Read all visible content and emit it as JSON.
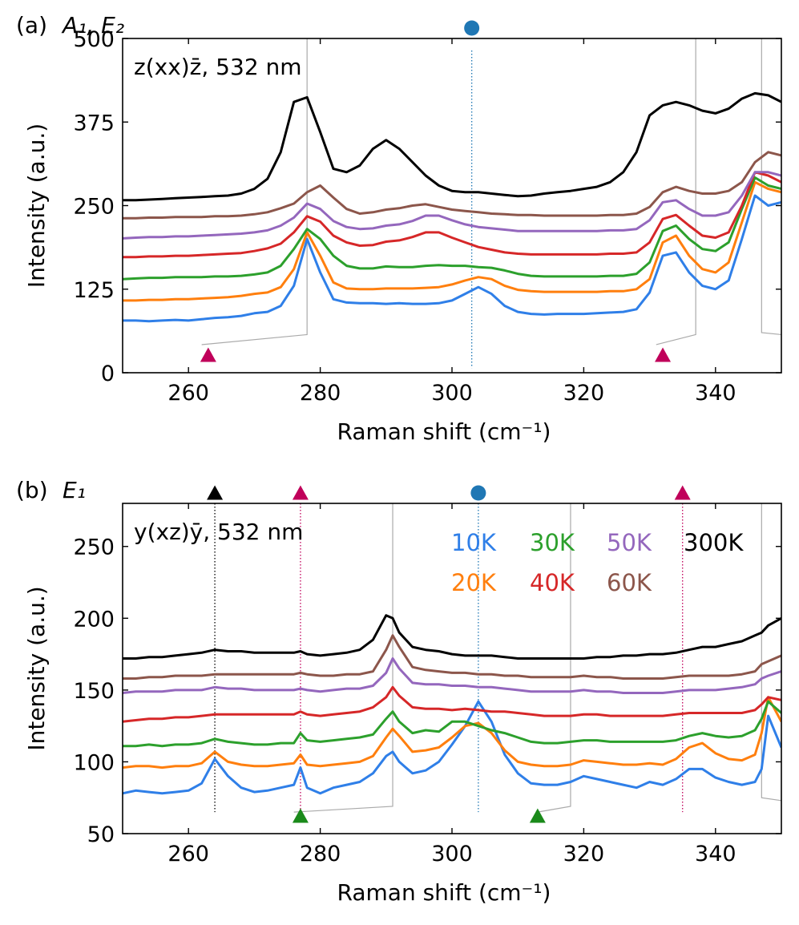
{
  "chart_data": [
    {
      "type": "line",
      "panel_label": "(a)",
      "title_symbols": "A₁, E₂",
      "annotation": "z(xx)z̄, 532 nm",
      "xlabel": "Raman shift (cm⁻¹)",
      "ylabel": "Intensity (a.u.)",
      "xlim": [
        250,
        350
      ],
      "ylim": [
        0,
        500
      ],
      "xticks": [
        260,
        280,
        300,
        320,
        340
      ],
      "yticks": [
        0,
        125,
        250,
        375,
        500
      ],
      "x": [
        250,
        252,
        254,
        256,
        258,
        260,
        262,
        264,
        266,
        268,
        270,
        272,
        274,
        276,
        278,
        280,
        282,
        284,
        286,
        288,
        290,
        292,
        294,
        296,
        298,
        300,
        302,
        304,
        306,
        308,
        310,
        312,
        314,
        316,
        318,
        320,
        322,
        324,
        326,
        328,
        330,
        332,
        334,
        336,
        338,
        340,
        342,
        344,
        346,
        348,
        350
      ],
      "series": [
        {
          "name": "10K",
          "color": "#2f7fe8",
          "values": [
            78,
            78,
            77,
            78,
            79,
            78,
            80,
            82,
            83,
            85,
            89,
            91,
            100,
            130,
            200,
            150,
            110,
            105,
            104,
            104,
            103,
            104,
            103,
            103,
            104,
            108,
            118,
            128,
            118,
            100,
            91,
            88,
            87,
            88,
            88,
            88,
            89,
            90,
            91,
            95,
            120,
            175,
            180,
            150,
            130,
            125,
            138,
            200,
            265,
            250,
            255
          ]
        },
        {
          "name": "20K",
          "color": "#ff7f0e",
          "values": [
            108,
            108,
            109,
            109,
            110,
            110,
            111,
            112,
            113,
            115,
            118,
            120,
            128,
            155,
            210,
            175,
            135,
            126,
            125,
            125,
            126,
            126,
            126,
            127,
            128,
            132,
            138,
            143,
            140,
            130,
            124,
            122,
            121,
            121,
            121,
            121,
            121,
            122,
            122,
            125,
            140,
            195,
            205,
            175,
            155,
            150,
            165,
            225,
            285,
            275,
            270
          ]
        },
        {
          "name": "30K",
          "color": "#2ca02c",
          "values": [
            140,
            141,
            142,
            142,
            143,
            143,
            143,
            144,
            144,
            145,
            147,
            150,
            160,
            185,
            215,
            200,
            175,
            160,
            156,
            156,
            159,
            158,
            158,
            160,
            161,
            160,
            160,
            158,
            157,
            153,
            148,
            145,
            144,
            144,
            144,
            144,
            144,
            145,
            145,
            148,
            165,
            212,
            220,
            200,
            185,
            182,
            195,
            245,
            292,
            280,
            275
          ]
        },
        {
          "name": "40K",
          "color": "#d62728",
          "values": [
            173,
            173,
            174,
            174,
            175,
            175,
            176,
            177,
            178,
            179,
            182,
            186,
            193,
            210,
            234,
            226,
            205,
            195,
            190,
            191,
            196,
            198,
            203,
            210,
            210,
            202,
            195,
            188,
            184,
            180,
            178,
            177,
            177,
            177,
            177,
            177,
            177,
            178,
            178,
            180,
            195,
            230,
            236,
            220,
            205,
            202,
            210,
            250,
            300,
            295,
            285
          ]
        },
        {
          "name": "50K",
          "color": "#9467bd",
          "values": [
            201,
            202,
            203,
            203,
            204,
            204,
            205,
            206,
            207,
            208,
            210,
            213,
            220,
            232,
            253,
            245,
            227,
            218,
            215,
            216,
            220,
            222,
            227,
            235,
            235,
            228,
            222,
            218,
            216,
            214,
            212,
            212,
            212,
            212,
            212,
            212,
            212,
            213,
            213,
            215,
            228,
            255,
            258,
            245,
            235,
            235,
            240,
            265,
            300,
            300,
            295
          ]
        },
        {
          "name": "60K",
          "color": "#8c564b",
          "values": [
            231,
            231,
            232,
            232,
            233,
            233,
            233,
            234,
            234,
            235,
            237,
            240,
            246,
            253,
            270,
            280,
            262,
            245,
            238,
            240,
            244,
            246,
            250,
            252,
            248,
            244,
            242,
            240,
            238,
            237,
            236,
            236,
            235,
            235,
            235,
            235,
            235,
            236,
            236,
            238,
            248,
            270,
            278,
            272,
            268,
            268,
            272,
            285,
            315,
            330,
            325
          ]
        },
        {
          "name": "300K",
          "color": "#000000",
          "values": [
            258,
            258,
            259,
            260,
            261,
            262,
            263,
            264,
            265,
            268,
            275,
            290,
            330,
            405,
            412,
            360,
            305,
            300,
            310,
            335,
            348,
            335,
            315,
            295,
            280,
            272,
            270,
            270,
            268,
            266,
            264,
            265,
            268,
            270,
            272,
            275,
            278,
            285,
            300,
            330,
            385,
            400,
            405,
            400,
            392,
            388,
            395,
            410,
            418,
            415,
            405
          ]
        }
      ],
      "markers": [
        {
          "symbol": "circle",
          "color": "#1f77b4",
          "x": 303,
          "position": "top"
        },
        {
          "symbol": "triangle",
          "color": "#c0005a",
          "x": 263,
          "position": "bottom"
        },
        {
          "symbol": "triangle",
          "color": "#c0005a",
          "x": 332,
          "position": "bottom"
        }
      ],
      "dotted_line_x": 303
    },
    {
      "type": "line",
      "panel_label": "(b)",
      "title_symbols": "E₁",
      "annotation": "y(xz)ȳ, 532 nm",
      "xlabel": "Raman shift (cm⁻¹)",
      "ylabel": "Intensity (a.u.)",
      "xlim": [
        250,
        350
      ],
      "ylim": [
        50,
        280
      ],
      "xticks": [
        260,
        280,
        300,
        320,
        340
      ],
      "yticks": [
        50,
        100,
        150,
        200,
        250
      ],
      "x": [
        250,
        252,
        254,
        256,
        258,
        260,
        262,
        264,
        266,
        268,
        270,
        272,
        274,
        276,
        277,
        278,
        280,
        282,
        284,
        286,
        288,
        290,
        291,
        292,
        294,
        296,
        298,
        300,
        302,
        304,
        306,
        308,
        310,
        312,
        314,
        316,
        318,
        320,
        322,
        324,
        326,
        328,
        330,
        332,
        334,
        336,
        338,
        340,
        342,
        344,
        346,
        347,
        348,
        350
      ],
      "series": [
        {
          "name": "10K",
          "color": "#2f7fe8",
          "values": [
            78,
            80,
            79,
            78,
            79,
            80,
            85,
            102,
            90,
            82,
            79,
            80,
            82,
            84,
            96,
            82,
            78,
            82,
            84,
            86,
            92,
            104,
            107,
            100,
            92,
            94,
            100,
            112,
            125,
            142,
            128,
            105,
            92,
            85,
            84,
            84,
            86,
            90,
            88,
            86,
            84,
            82,
            86,
            84,
            88,
            95,
            95,
            89,
            86,
            84,
            86,
            95,
            132,
            110
          ]
        },
        {
          "name": "20K",
          "color": "#ff7f0e",
          "values": [
            96,
            97,
            97,
            96,
            97,
            97,
            99,
            107,
            100,
            98,
            97,
            97,
            98,
            99,
            105,
            98,
            97,
            98,
            99,
            100,
            104,
            117,
            123,
            118,
            107,
            108,
            110,
            117,
            125,
            127,
            120,
            108,
            100,
            98,
            97,
            97,
            98,
            101,
            100,
            99,
            98,
            98,
            99,
            98,
            102,
            110,
            113,
            106,
            102,
            101,
            105,
            120,
            145,
            128
          ]
        },
        {
          "name": "30K",
          "color": "#2ca02c",
          "values": [
            111,
            111,
            112,
            111,
            112,
            112,
            113,
            116,
            114,
            113,
            112,
            112,
            113,
            113,
            120,
            115,
            114,
            115,
            116,
            117,
            119,
            130,
            135,
            128,
            120,
            122,
            121,
            128,
            128,
            125,
            122,
            120,
            117,
            114,
            113,
            113,
            114,
            115,
            115,
            114,
            114,
            114,
            114,
            114,
            115,
            118,
            120,
            118,
            117,
            118,
            122,
            130,
            142,
            134
          ]
        },
        {
          "name": "40K",
          "color": "#d62728",
          "values": [
            128,
            129,
            130,
            130,
            131,
            131,
            132,
            133,
            133,
            133,
            133,
            133,
            133,
            133,
            135,
            133,
            132,
            133,
            134,
            135,
            138,
            145,
            152,
            146,
            138,
            137,
            137,
            136,
            137,
            136,
            135,
            135,
            134,
            133,
            132,
            132,
            132,
            133,
            133,
            132,
            132,
            132,
            132,
            132,
            133,
            134,
            134,
            134,
            134,
            134,
            136,
            140,
            145,
            143
          ]
        },
        {
          "name": "50K",
          "color": "#9467bd",
          "values": [
            148,
            149,
            149,
            149,
            150,
            150,
            150,
            152,
            151,
            151,
            150,
            150,
            150,
            150,
            151,
            150,
            149,
            150,
            151,
            151,
            153,
            162,
            172,
            165,
            155,
            154,
            154,
            153,
            153,
            152,
            152,
            151,
            150,
            149,
            149,
            149,
            149,
            150,
            149,
            149,
            148,
            148,
            148,
            148,
            149,
            150,
            150,
            150,
            151,
            152,
            154,
            158,
            160,
            163
          ]
        },
        {
          "name": "60K",
          "color": "#8c564b",
          "values": [
            158,
            158,
            159,
            159,
            160,
            160,
            160,
            161,
            161,
            161,
            161,
            161,
            161,
            161,
            162,
            161,
            160,
            160,
            161,
            161,
            163,
            178,
            188,
            180,
            166,
            164,
            163,
            162,
            162,
            161,
            161,
            160,
            160,
            159,
            159,
            159,
            159,
            160,
            159,
            159,
            158,
            158,
            158,
            158,
            159,
            160,
            160,
            160,
            160,
            161,
            163,
            168,
            170,
            174
          ]
        },
        {
          "name": "300K",
          "color": "#000000",
          "values": [
            172,
            172,
            173,
            173,
            174,
            175,
            176,
            178,
            177,
            177,
            176,
            176,
            176,
            176,
            177,
            175,
            174,
            175,
            176,
            178,
            185,
            202,
            200,
            190,
            180,
            178,
            177,
            175,
            174,
            174,
            174,
            173,
            172,
            172,
            172,
            172,
            172,
            172,
            173,
            173,
            174,
            174,
            175,
            175,
            176,
            178,
            180,
            180,
            182,
            184,
            188,
            190,
            195,
            200
          ]
        }
      ],
      "markers": [
        {
          "symbol": "triangle",
          "color": "#000000",
          "x": 264,
          "position": "top"
        },
        {
          "symbol": "triangle",
          "color": "#c0005a",
          "x": 277,
          "position": "top"
        },
        {
          "symbol": "circle",
          "color": "#1f77b4",
          "x": 304,
          "position": "top"
        },
        {
          "symbol": "triangle",
          "color": "#c0005a",
          "x": 335,
          "position": "top"
        },
        {
          "symbol": "triangle",
          "color": "#1a8a1a",
          "x": 277,
          "position": "bottom"
        },
        {
          "symbol": "triangle",
          "color": "#1a8a1a",
          "x": 313,
          "position": "bottom"
        }
      ],
      "dotted_lines": [
        {
          "x": 264,
          "color": "#000000"
        },
        {
          "x": 277,
          "color": "#c0005a"
        },
        {
          "x": 304,
          "color": "#1f77b4"
        },
        {
          "x": 335,
          "color": "#c0005a"
        }
      ],
      "legend": {
        "placement": "top-right",
        "entries": [
          {
            "label": "10K",
            "color": "#2f7fe8"
          },
          {
            "label": "30K",
            "color": "#2ca02c"
          },
          {
            "label": "50K",
            "color": "#9467bd"
          },
          {
            "label": "300K",
            "color": "#000000"
          },
          {
            "label": "20K",
            "color": "#ff7f0e"
          },
          {
            "label": "40K",
            "color": "#d62728"
          },
          {
            "label": "60K",
            "color": "#8c564b"
          }
        ]
      }
    }
  ]
}
